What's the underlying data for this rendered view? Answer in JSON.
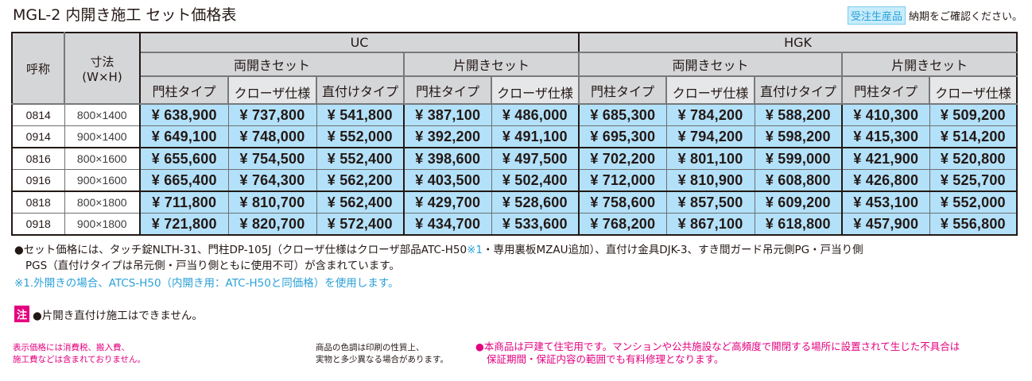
{
  "header": {
    "title": "MGL-2 内開き施工 セット価格表",
    "badge": "受注生産品",
    "order_note": "納期をご確認ください。"
  },
  "colors": {
    "header_bg": "#d5d6d8",
    "price_bg": "#b3e1f9",
    "accent_blue": "#2aa0d8",
    "accent_magenta": "#e4007f"
  },
  "table": {
    "col_name": "呼称",
    "col_size": "寸法",
    "col_size_unit": "(W×H)",
    "series": [
      {
        "name": "UC"
      },
      {
        "name": "HGK"
      }
    ],
    "set_types": {
      "double": "両開きセット",
      "single": "片開きセット"
    },
    "types": {
      "post": "門柱タイプ",
      "closer": "クローザ仕様",
      "direct": "直付けタイプ"
    },
    "rows": [
      {
        "code": "0814",
        "size": "800×1400",
        "prices": [
          "¥ 638,900",
          "¥ 737,800",
          "¥ 541,800",
          "¥ 387,100",
          "¥ 486,000",
          "¥ 685,300",
          "¥ 784,200",
          "¥ 588,200",
          "¥ 410,300",
          "¥ 509,200"
        ]
      },
      {
        "code": "0914",
        "size": "900×1400",
        "prices": [
          "¥ 649,100",
          "¥ 748,000",
          "¥ 552,000",
          "¥ 392,200",
          "¥ 491,100",
          "¥ 695,300",
          "¥ 794,200",
          "¥ 598,200",
          "¥ 415,300",
          "¥ 514,200"
        ]
      },
      {
        "code": "0816",
        "size": "800×1600",
        "prices": [
          "¥ 655,600",
          "¥ 754,500",
          "¥ 552,400",
          "¥ 398,600",
          "¥ 497,500",
          "¥ 702,200",
          "¥ 801,100",
          "¥ 599,000",
          "¥ 421,900",
          "¥ 520,800"
        ]
      },
      {
        "code": "0916",
        "size": "900×1600",
        "prices": [
          "¥ 665,400",
          "¥ 764,300",
          "¥ 562,200",
          "¥ 403,500",
          "¥ 502,400",
          "¥ 712,000",
          "¥ 810,900",
          "¥ 608,800",
          "¥ 426,800",
          "¥ 525,700"
        ]
      },
      {
        "code": "0818",
        "size": "800×1800",
        "prices": [
          "¥ 711,800",
          "¥ 810,700",
          "¥ 562,400",
          "¥ 429,700",
          "¥ 528,600",
          "¥ 758,600",
          "¥ 857,500",
          "¥ 609,200",
          "¥ 453,100",
          "¥ 552,000"
        ]
      },
      {
        "code": "0918",
        "size": "900×1800",
        "prices": [
          "¥ 721,800",
          "¥ 820,700",
          "¥ 572,400",
          "¥ 434,700",
          "¥ 533,600",
          "¥ 768,200",
          "¥ 867,100",
          "¥ 618,800",
          "¥ 457,900",
          "¥ 556,800"
        ]
      }
    ]
  },
  "notes": {
    "line1_a": "●セット価格には、タッチ錠NLTH-31、門柱DP-105J（クローザ仕様はクローザ部品ATC-H50",
    "line1_ref": "※1",
    "line1_b": "・専用裏板MZAU追加）、直付け金具DJK-3、すき間ガード吊元側PG・戸当り側",
    "line2": "PGS（直付けタイプは吊元側・戸当り側ともに使用不可）が含まれています。",
    "footnote1": "※1.外開きの場合、ATCS-H50（内開き用：ATC-H50と同価格）を使用します。"
  },
  "warning": {
    "label": "注",
    "text": "●片開き直付け施工はできません。"
  },
  "footer": {
    "tax_line1": "表示価格には消費税、搬入費、",
    "tax_line2": "施工費などは含まれておりません。",
    "color_line1": "商品の色調は印刷の性質上、",
    "color_line2": "実物と多少異なる場合があります。",
    "usage_line1": "●本商品は戸建て住宅用です。マンションや公共施設など高頻度で開閉する場所に設置されて生じた不具合は",
    "usage_line2": "保証期間・保証内容の範囲でも有料修理となります。"
  }
}
